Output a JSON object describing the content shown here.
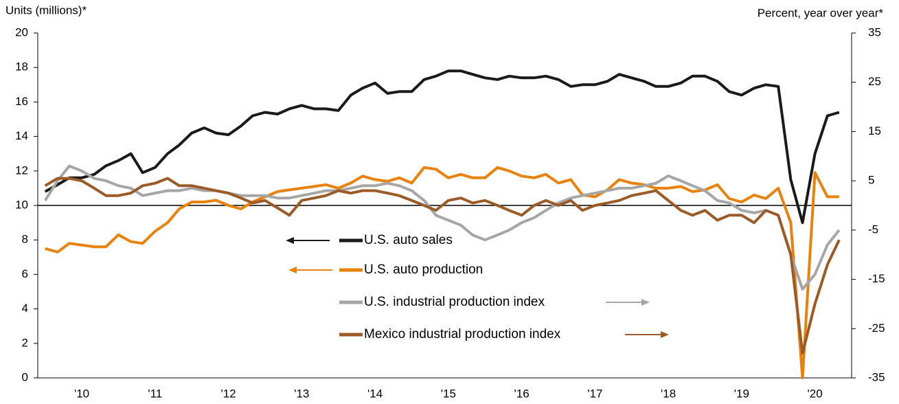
{
  "chart_data": {
    "type": "line",
    "ylabel": "Units (millions)*",
    "y2label": "Percent, year over year*",
    "x": [
      2010.0,
      2010.17,
      2010.33,
      2010.5,
      2010.67,
      2010.83,
      2011.0,
      2011.17,
      2011.33,
      2011.5,
      2011.67,
      2011.83,
      2012.0,
      2012.17,
      2012.33,
      2012.5,
      2012.67,
      2012.83,
      2013.0,
      2013.17,
      2013.33,
      2013.5,
      2013.67,
      2013.83,
      2014.0,
      2014.17,
      2014.33,
      2014.5,
      2014.67,
      2014.83,
      2015.0,
      2015.17,
      2015.33,
      2015.5,
      2015.67,
      2015.83,
      2016.0,
      2016.17,
      2016.33,
      2016.5,
      2016.67,
      2016.83,
      2017.0,
      2017.17,
      2017.33,
      2017.5,
      2017.67,
      2017.83,
      2018.0,
      2018.17,
      2018.33,
      2018.5,
      2018.67,
      2018.83,
      2019.0,
      2019.17,
      2019.33,
      2019.5,
      2019.67,
      2019.83,
      2020.0,
      2020.17,
      2020.33,
      2020.5,
      2020.67,
      2020.83
    ],
    "xlim": [
      2009.9,
      2021.0
    ],
    "xticks": [
      {
        "value": 2010.5,
        "label": "'10"
      },
      {
        "value": 2011.5,
        "label": "'11"
      },
      {
        "value": 2012.5,
        "label": "'12"
      },
      {
        "value": 2013.5,
        "label": "'13"
      },
      {
        "value": 2014.5,
        "label": "'14"
      },
      {
        "value": 2015.5,
        "label": "'15"
      },
      {
        "value": 2016.5,
        "label": "'16"
      },
      {
        "value": 2017.5,
        "label": "'17"
      },
      {
        "value": 2018.5,
        "label": "'18"
      },
      {
        "value": 2019.5,
        "label": "'19"
      },
      {
        "value": 2020.5,
        "label": "'20"
      }
    ],
    "ylim": [
      0,
      20
    ],
    "yticks": [
      0,
      2,
      4,
      6,
      8,
      10,
      12,
      14,
      16,
      18,
      20
    ],
    "y2lim": [
      -35,
      35
    ],
    "y2ticks": [
      -35,
      -25,
      -15,
      -5,
      5,
      15,
      25,
      35
    ],
    "series": [
      {
        "name": "U.S. auto sales",
        "color": "#1a1a1a",
        "axis": "y",
        "values": [
          10.8,
          11.2,
          11.6,
          11.6,
          11.8,
          12.3,
          12.6,
          13.0,
          11.9,
          12.2,
          13.0,
          13.5,
          14.2,
          14.5,
          14.2,
          14.1,
          14.6,
          15.2,
          15.4,
          15.3,
          15.6,
          15.8,
          15.6,
          15.6,
          15.5,
          16.4,
          16.8,
          17.1,
          16.5,
          16.6,
          16.6,
          17.3,
          17.5,
          17.8,
          17.8,
          17.6,
          17.4,
          17.3,
          17.5,
          17.4,
          17.4,
          17.5,
          17.3,
          16.9,
          17.0,
          17.0,
          17.2,
          17.6,
          17.4,
          17.2,
          16.9,
          16.9,
          17.1,
          17.5,
          17.5,
          17.2,
          16.6,
          16.4,
          16.8,
          17.0,
          16.9,
          11.5,
          9.0,
          13.0,
          15.2,
          15.4
        ]
      },
      {
        "name": "U.S. auto production",
        "color": "#e8820c",
        "axis": "y",
        "values": [
          7.5,
          7.3,
          7.8,
          7.7,
          7.6,
          7.6,
          8.3,
          7.9,
          7.8,
          8.5,
          9.0,
          9.8,
          10.2,
          10.2,
          10.3,
          10.0,
          9.8,
          10.2,
          10.5,
          10.8,
          10.9,
          11.0,
          11.1,
          11.2,
          11.0,
          11.3,
          11.7,
          11.5,
          11.4,
          11.6,
          11.3,
          12.2,
          12.1,
          11.6,
          11.8,
          11.6,
          11.6,
          12.2,
          12.0,
          11.7,
          11.6,
          11.8,
          11.3,
          11.5,
          10.6,
          10.5,
          10.9,
          11.5,
          11.3,
          11.2,
          11.0,
          11.0,
          11.1,
          10.8,
          10.9,
          11.2,
          10.4,
          10.2,
          10.6,
          10.4,
          11.0,
          9.0,
          0.0,
          11.9,
          10.5,
          10.5
        ]
      },
      {
        "name": "U.S. industrial production index",
        "color": "#a6a6a6",
        "axis": "y2",
        "values": [
          1,
          5,
          8,
          7,
          5.5,
          5,
          4,
          3.5,
          2,
          2.5,
          3,
          3,
          3.5,
          3,
          3,
          2.5,
          2,
          2,
          2,
          1.5,
          1.5,
          2,
          2.5,
          3,
          3,
          3.5,
          4,
          4,
          4.5,
          4,
          3,
          1,
          -2,
          -3,
          -4,
          -6,
          -7,
          -6,
          -5,
          -3.5,
          -2.5,
          -1,
          0.5,
          1.5,
          2,
          2.5,
          3,
          3.5,
          3.5,
          4,
          4.5,
          6,
          5,
          4,
          3,
          1,
          0.5,
          -1,
          -1.5,
          -1,
          -2,
          -10,
          -17,
          -14,
          -8,
          -5
        ]
      },
      {
        "name": "Mexico industrial production index",
        "color": "#9c5b26",
        "axis": "y2",
        "values": [
          4,
          5.5,
          5.5,
          5,
          3.5,
          2,
          2,
          2.5,
          4,
          4.5,
          5.5,
          4,
          4,
          3.5,
          3,
          2.5,
          1.5,
          0.5,
          1,
          -0.5,
          -2,
          1,
          1.5,
          2,
          3,
          2.5,
          3,
          3,
          2.5,
          2,
          1,
          0,
          -1,
          1,
          1.5,
          0.5,
          1,
          0,
          -1,
          -2,
          0,
          1,
          0,
          1,
          -1,
          0,
          0.5,
          1,
          2,
          2.5,
          3,
          1,
          -1,
          -2,
          -1,
          -3,
          -2,
          -2,
          -3.5,
          -1,
          -2,
          -10,
          -30,
          -20,
          -12,
          -7
        ]
      }
    ]
  }
}
